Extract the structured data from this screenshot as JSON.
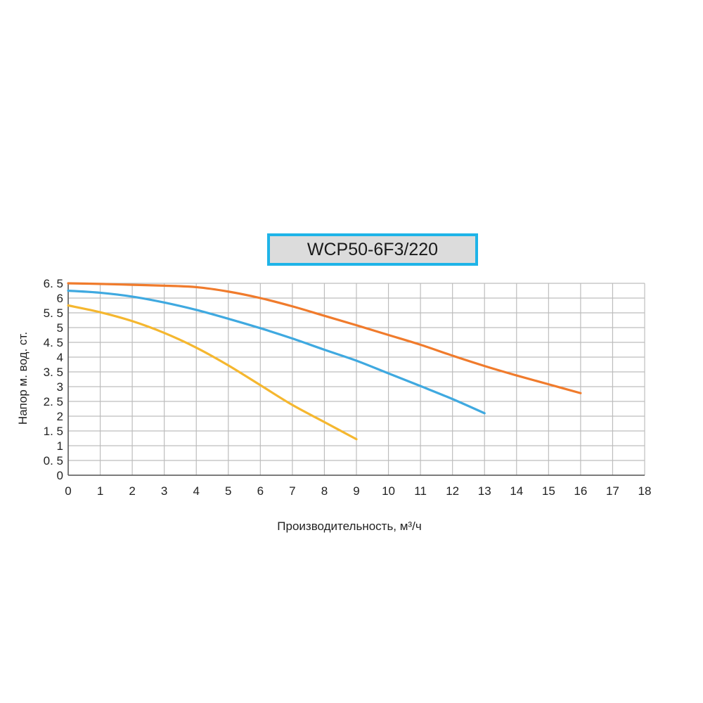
{
  "chart_data": {
    "type": "line",
    "title": "WCP50-6F3/220",
    "xlabel": "Производительность, м³/ч",
    "ylabel": "Напор м. вод. ст.",
    "xlim": [
      0,
      18
    ],
    "ylim": [
      0,
      6.5
    ],
    "x_ticks": [
      "0",
      "1",
      "2",
      "3",
      "4",
      "5",
      "6",
      "7",
      "8",
      "9",
      "10",
      "11",
      "12",
      "13",
      "14",
      "15",
      "16",
      "17",
      "18"
    ],
    "y_ticks": [
      "0",
      "0. 5",
      "1",
      "1. 5",
      "2",
      "2. 5",
      "3",
      "3. 5",
      "4",
      "4. 5",
      "5",
      "5. 5",
      "6",
      "6. 5"
    ],
    "grid": true,
    "series": [
      {
        "color": "#f07b2c",
        "points": [
          [
            0,
            6.5
          ],
          [
            1,
            6.48
          ],
          [
            2,
            6.45
          ],
          [
            3,
            6.42
          ],
          [
            4,
            6.37
          ],
          [
            5,
            6.22
          ],
          [
            6,
            6.0
          ],
          [
            7,
            5.72
          ],
          [
            8,
            5.4
          ],
          [
            9,
            5.08
          ],
          [
            10,
            4.75
          ],
          [
            11,
            4.42
          ],
          [
            12,
            4.05
          ],
          [
            13,
            3.7
          ],
          [
            14,
            3.38
          ],
          [
            15,
            3.08
          ],
          [
            16,
            2.78
          ]
        ]
      },
      {
        "color": "#3fa9e0",
        "points": [
          [
            0,
            6.25
          ],
          [
            1,
            6.18
          ],
          [
            2,
            6.05
          ],
          [
            3,
            5.85
          ],
          [
            4,
            5.6
          ],
          [
            5,
            5.3
          ],
          [
            6,
            4.98
          ],
          [
            7,
            4.63
          ],
          [
            8,
            4.25
          ],
          [
            9,
            3.88
          ],
          [
            10,
            3.45
          ],
          [
            11,
            3.02
          ],
          [
            12,
            2.58
          ],
          [
            13,
            2.1
          ]
        ]
      },
      {
        "color": "#f5b72f",
        "points": [
          [
            0,
            5.75
          ],
          [
            1,
            5.52
          ],
          [
            2,
            5.22
          ],
          [
            3,
            4.82
          ],
          [
            4,
            4.32
          ],
          [
            5,
            3.72
          ],
          [
            6,
            3.05
          ],
          [
            7,
            2.38
          ],
          [
            8,
            1.8
          ],
          [
            9,
            1.22
          ]
        ]
      }
    ]
  }
}
